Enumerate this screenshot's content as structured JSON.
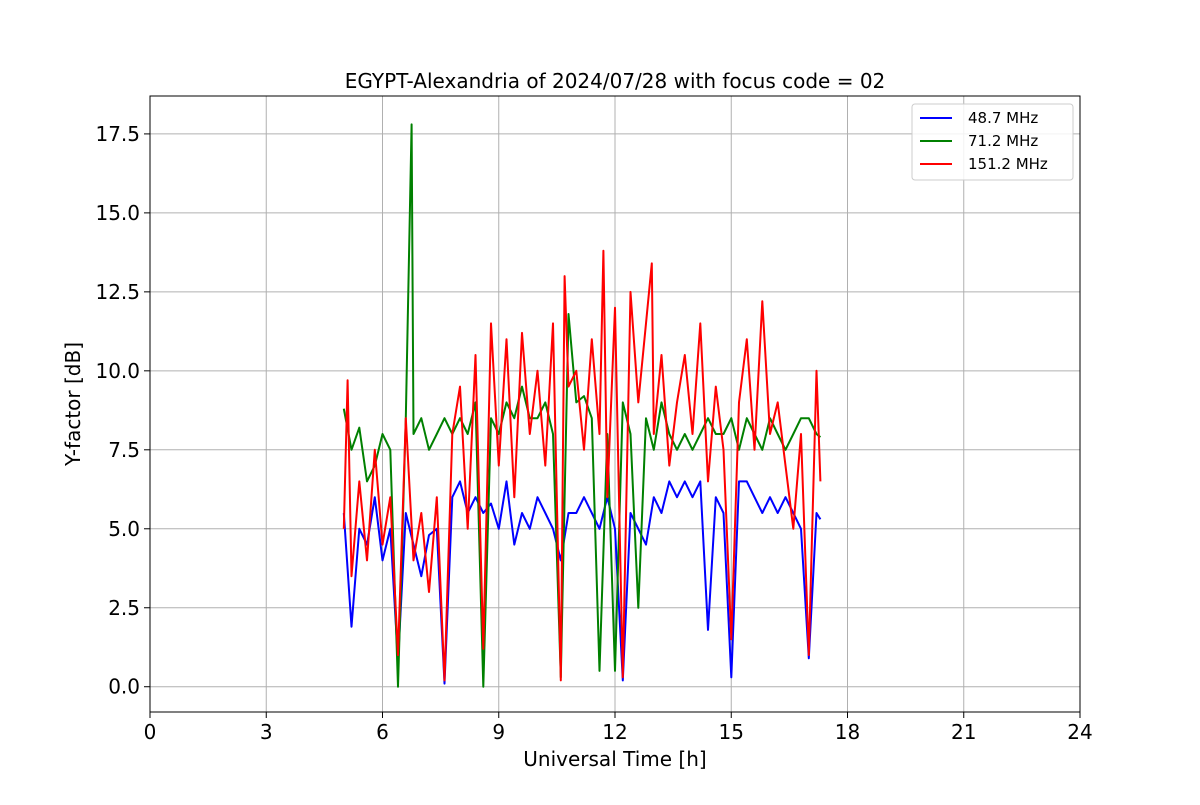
{
  "chart_data": {
    "type": "line",
    "title": "EGYPT-Alexandria of 2024/07/28 with focus code = 02",
    "xlabel": "Universal Time [h]",
    "ylabel": "Y-factor [dB]",
    "xlim": [
      0,
      24
    ],
    "ylim": [
      -0.8,
      18.7
    ],
    "xticks": [
      0,
      3,
      6,
      9,
      12,
      15,
      18,
      21,
      24
    ],
    "xtick_labels": [
      "0",
      "3",
      "6",
      "9",
      "12",
      "15",
      "18",
      "21",
      "24"
    ],
    "yticks": [
      0.0,
      2.5,
      5.0,
      7.5,
      10.0,
      12.5,
      15.0,
      17.5
    ],
    "ytick_labels": [
      "0.0",
      "2.5",
      "5.0",
      "7.5",
      "10.0",
      "12.5",
      "15.0",
      "17.5"
    ],
    "grid": true,
    "legend_position": "top-right",
    "series": [
      {
        "name": " 48.7 MHz",
        "color": "#0000ff",
        "x": [
          5.0,
          5.2,
          5.4,
          5.6,
          5.8,
          6.0,
          6.2,
          6.4,
          6.6,
          6.8,
          7.0,
          7.2,
          7.4,
          7.6,
          7.8,
          8.0,
          8.2,
          8.4,
          8.6,
          8.8,
          9.0,
          9.2,
          9.4,
          9.6,
          9.8,
          10.0,
          10.2,
          10.4,
          10.6,
          10.8,
          11.0,
          11.2,
          11.4,
          11.6,
          11.8,
          12.0,
          12.2,
          12.4,
          12.6,
          12.8,
          13.0,
          13.2,
          13.4,
          13.6,
          13.8,
          14.0,
          14.2,
          14.4,
          14.6,
          14.8,
          15.0,
          15.2,
          15.4,
          15.6,
          15.8,
          16.0,
          16.2,
          16.4,
          16.6,
          16.8,
          17.0,
          17.2,
          17.3
        ],
        "y": [
          5.5,
          1.9,
          5.0,
          4.5,
          6.0,
          4.0,
          5.0,
          0.8,
          5.5,
          4.5,
          3.5,
          4.8,
          5.0,
          0.1,
          6.0,
          6.5,
          5.5,
          6.0,
          5.5,
          5.8,
          5.0,
          6.5,
          4.5,
          5.5,
          5.0,
          6.0,
          5.5,
          5.0,
          4.0,
          5.5,
          5.5,
          6.0,
          5.5,
          5.0,
          6.0,
          5.0,
          0.2,
          5.5,
          5.0,
          4.5,
          6.0,
          5.5,
          6.5,
          6.0,
          6.5,
          6.0,
          6.5,
          1.8,
          6.0,
          5.5,
          0.3,
          6.5,
          6.5,
          6.0,
          5.5,
          6.0,
          5.5,
          6.0,
          5.5,
          5.0,
          0.9,
          5.5,
          5.3
        ]
      },
      {
        "name": " 71.2 MHz",
        "color": "#008000",
        "x": [
          5.0,
          5.2,
          5.4,
          5.6,
          5.8,
          6.0,
          6.2,
          6.4,
          6.6,
          6.75,
          6.8,
          7.0,
          7.2,
          7.4,
          7.6,
          7.8,
          8.0,
          8.2,
          8.4,
          8.6,
          8.8,
          9.0,
          9.2,
          9.4,
          9.6,
          9.8,
          10.0,
          10.2,
          10.4,
          10.6,
          10.8,
          11.0,
          11.2,
          11.4,
          11.6,
          11.8,
          12.0,
          12.2,
          12.4,
          12.6,
          12.8,
          13.0,
          13.2,
          13.4,
          13.6,
          13.8,
          14.0,
          14.2,
          14.4,
          14.6,
          14.8,
          15.0,
          15.2,
          15.4,
          15.6,
          15.8,
          16.0,
          16.2,
          16.4,
          16.6,
          16.8,
          17.0,
          17.2,
          17.3
        ],
        "y": [
          8.8,
          7.5,
          8.2,
          6.5,
          7.0,
          8.0,
          7.5,
          0.0,
          8.5,
          17.8,
          8.0,
          8.5,
          7.5,
          8.0,
          8.5,
          8.0,
          8.5,
          8.0,
          9.0,
          0.0,
          8.5,
          8.0,
          9.0,
          8.5,
          9.5,
          8.5,
          8.5,
          9.0,
          8.0,
          0.3,
          11.8,
          9.0,
          9.2,
          8.5,
          0.5,
          8.0,
          0.5,
          9.0,
          8.0,
          2.5,
          8.5,
          7.5,
          9.0,
          8.0,
          7.5,
          8.0,
          7.5,
          8.0,
          8.5,
          8.0,
          8.0,
          8.5,
          7.5,
          8.5,
          8.0,
          7.5,
          8.5,
          8.0,
          7.5,
          8.0,
          8.5,
          8.5,
          8.0,
          7.9
        ]
      },
      {
        "name": " 151.2 MHz",
        "color": "#ff0000",
        "x": [
          5.0,
          5.1,
          5.2,
          5.4,
          5.6,
          5.8,
          6.0,
          6.2,
          6.4,
          6.6,
          6.8,
          7.0,
          7.2,
          7.4,
          7.6,
          7.8,
          8.0,
          8.2,
          8.4,
          8.6,
          8.8,
          9.0,
          9.2,
          9.4,
          9.6,
          9.8,
          10.0,
          10.2,
          10.4,
          10.6,
          10.7,
          10.8,
          11.0,
          11.2,
          11.4,
          11.6,
          11.7,
          11.8,
          12.0,
          12.2,
          12.4,
          12.6,
          12.8,
          12.95,
          13.0,
          13.2,
          13.4,
          13.6,
          13.8,
          14.0,
          14.2,
          14.4,
          14.6,
          14.8,
          15.0,
          15.2,
          15.4,
          15.6,
          15.8,
          16.0,
          16.2,
          16.4,
          16.6,
          16.8,
          17.0,
          17.2,
          17.3
        ],
        "y": [
          5.0,
          9.7,
          3.5,
          6.5,
          4.0,
          7.5,
          4.5,
          6.0,
          1.0,
          8.5,
          4.0,
          5.5,
          3.0,
          6.0,
          0.2,
          8.0,
          9.5,
          5.0,
          10.5,
          1.2,
          11.5,
          7.0,
          11.0,
          6.0,
          11.2,
          8.0,
          10.0,
          7.0,
          11.5,
          0.2,
          13.0,
          9.5,
          10.0,
          7.5,
          11.0,
          8.0,
          13.8,
          6.0,
          12.0,
          0.3,
          12.5,
          9.0,
          11.5,
          13.4,
          8.0,
          10.5,
          7.0,
          9.0,
          10.5,
          8.0,
          11.5,
          6.5,
          9.5,
          7.5,
          1.5,
          9.0,
          11.0,
          7.5,
          12.2,
          8.0,
          9.0,
          7.0,
          5.0,
          8.0,
          1.0,
          10.0,
          6.5
        ]
      }
    ]
  }
}
